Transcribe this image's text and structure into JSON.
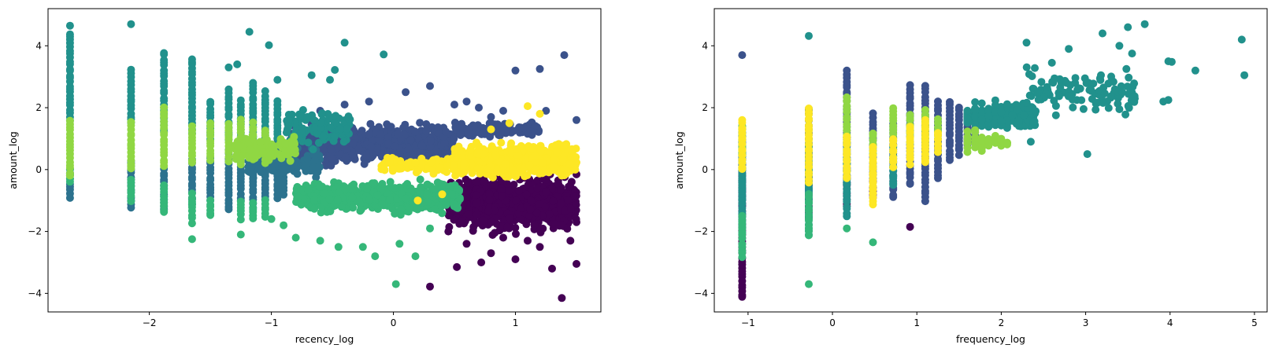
{
  "chart_data": [
    {
      "type": "scatter",
      "title": "",
      "xlabel": "recency_log",
      "ylabel": "amount_log",
      "xlim": [
        -2.83,
        1.7
      ],
      "ylim": [
        -4.6,
        5.2
      ],
      "xticks": [
        -2,
        -1,
        0,
        1
      ],
      "xtick_labels": [
        "−2",
        "−1",
        "0",
        "1"
      ],
      "yticks": [
        -4,
        -2,
        0,
        2,
        4
      ],
      "ytick_labels": [
        "−4",
        "−2",
        "0",
        "2",
        "4"
      ],
      "grid": false,
      "legend": "none",
      "marker_size_pt": 6,
      "colormap": "viridis",
      "series": [
        {
          "cluster": 0,
          "color": "#440154",
          "regions": [
            {
              "x": [
                0.45,
                1.5
              ],
              "y": [
                -2.2,
                0.0
              ],
              "n": 900
            }
          ],
          "points": [
            [
              0.45,
              -2.0
            ],
            [
              0.6,
              -2.4
            ],
            [
              0.8,
              -2.7
            ],
            [
              1.0,
              -2.9
            ],
            [
              1.2,
              -2.5
            ],
            [
              1.3,
              -3.2
            ],
            [
              1.38,
              -4.15
            ],
            [
              1.5,
              -3.05
            ],
            [
              0.72,
              -3.0
            ],
            [
              0.52,
              -3.15
            ],
            [
              0.3,
              -3.78
            ],
            [
              1.1,
              -2.3
            ],
            [
              1.45,
              -2.3
            ],
            [
              0.9,
              -2.2
            ]
          ]
        },
        {
          "cluster": 1,
          "color": "#3b528b",
          "regions": [
            {
              "x": [
                -0.85,
                0.5
              ],
              "y": [
                0.0,
                1.6
              ],
              "n": 800
            },
            {
              "x": [
                0.5,
                1.2
              ],
              "y": [
                1.0,
                1.6
              ],
              "n": 120
            }
          ],
          "points": [
            [
              -0.4,
              2.1
            ],
            [
              -0.2,
              2.2
            ],
            [
              0.1,
              2.5
            ],
            [
              0.3,
              2.7
            ],
            [
              0.5,
              2.1
            ],
            [
              0.6,
              2.2
            ],
            [
              0.7,
              2.0
            ],
            [
              0.9,
              1.9
            ],
            [
              1.0,
              3.2
            ],
            [
              1.2,
              3.25
            ],
            [
              1.4,
              3.7
            ],
            [
              1.5,
              1.6
            ],
            [
              1.25,
              1.9
            ],
            [
              -0.6,
              1.9
            ],
            [
              -0.8,
              0.5
            ],
            [
              0.8,
              1.7
            ]
          ]
        },
        {
          "cluster": 2,
          "color": "#2c728e",
          "regions": [
            {
              "x": [
                -1.2,
                -0.6
              ],
              "y": [
                -0.4,
                0.8
              ],
              "n": 150
            }
          ],
          "points": [],
          "stripes": [
            [
              -2.65,
              -0.9,
              0.0
            ],
            [
              -2.15,
              -1.2,
              0.3
            ],
            [
              -1.88,
              -1.3,
              0.0
            ],
            [
              -1.65,
              -1.1,
              0.3
            ],
            [
              -1.5,
              -1.0,
              0.4
            ],
            [
              -1.35,
              -1.3,
              0.6
            ],
            [
              -1.25,
              -1.0,
              0.8
            ],
            [
              -1.15,
              -1.2,
              1.0
            ],
            [
              -1.05,
              -1.0,
              1.0
            ],
            [
              -0.95,
              -0.9,
              1.0
            ],
            [
              -0.9,
              -0.8,
              0.8
            ]
          ]
        },
        {
          "cluster": 3,
          "color": "#21918c",
          "regions": [
            {
              "x": [
                -0.9,
                -0.35
              ],
              "y": [
                0.5,
                2.2
              ],
              "n": 110
            }
          ],
          "points": [
            [
              -2.65,
              4.65
            ],
            [
              -2.15,
              4.7
            ],
            [
              -1.18,
              4.45
            ],
            [
              -1.02,
              4.02
            ],
            [
              -1.35,
              3.3
            ],
            [
              -1.28,
              3.4
            ],
            [
              -0.4,
              4.1
            ],
            [
              -0.08,
              3.72
            ],
            [
              -0.48,
              3.22
            ],
            [
              -0.67,
              3.05
            ],
            [
              -0.52,
              2.9
            ],
            [
              -0.95,
              2.9
            ]
          ],
          "stripes": [
            [
              -2.65,
              1.6,
              4.4
            ],
            [
              -2.15,
              1.5,
              3.2
            ],
            [
              -1.88,
              1.2,
              3.8
            ],
            [
              -1.65,
              1.2,
              3.6
            ],
            [
              -1.5,
              1.0,
              2.2
            ],
            [
              -1.35,
              1.0,
              2.6
            ],
            [
              -1.25,
              1.0,
              2.2
            ],
            [
              -1.15,
              1.0,
              2.8
            ],
            [
              -1.05,
              1.0,
              2.5
            ],
            [
              -0.95,
              1.0,
              2.2
            ]
          ]
        },
        {
          "cluster": 4,
          "color": "#35b779",
          "regions": [
            {
              "x": [
                -0.8,
                0.55
              ],
              "y": [
                -1.5,
                -0.3
              ],
              "n": 650
            }
          ],
          "points": [
            [
              -1.65,
              -2.25
            ],
            [
              -1.25,
              -2.1
            ],
            [
              -0.8,
              -2.2
            ],
            [
              -0.6,
              -2.3
            ],
            [
              -0.45,
              -2.5
            ],
            [
              -0.25,
              -2.5
            ],
            [
              -0.15,
              -2.8
            ],
            [
              0.05,
              -2.4
            ],
            [
              0.18,
              -2.8
            ],
            [
              0.02,
              -3.7
            ],
            [
              -0.9,
              -1.8
            ],
            [
              -1.0,
              -1.6
            ],
            [
              0.3,
              -1.9
            ]
          ],
          "stripes": [
            [
              -2.65,
              -0.4,
              0.0
            ],
            [
              -2.15,
              -1.0,
              -0.3
            ],
            [
              -1.88,
              -1.4,
              -0.5
            ],
            [
              -1.65,
              -1.7,
              -0.8
            ],
            [
              -1.5,
              -1.5,
              -1.0
            ],
            [
              -1.25,
              -1.6,
              -1.0
            ],
            [
              -1.15,
              -1.6,
              -1.1
            ],
            [
              -1.05,
              -1.5,
              -1.0
            ]
          ]
        },
        {
          "cluster": 5,
          "color": "#90d743",
          "regions": [
            {
              "x": [
                -1.3,
                -0.8
              ],
              "y": [
                0.2,
                1.2
              ],
              "n": 120
            }
          ],
          "points": [],
          "stripes": [
            [
              -2.65,
              -0.2,
              1.6
            ],
            [
              -2.15,
              0.0,
              1.5
            ],
            [
              -1.88,
              0.1,
              2.0
            ],
            [
              -1.65,
              0.2,
              1.4
            ],
            [
              -1.5,
              0.3,
              1.5
            ],
            [
              -1.35,
              0.3,
              1.5
            ],
            [
              -1.25,
              0.2,
              1.6
            ],
            [
              -1.15,
              0.3,
              1.5
            ],
            [
              -1.05,
              0.2,
              1.3
            ]
          ]
        },
        {
          "cluster": 6,
          "color": "#fde725",
          "regions": [
            {
              "x": [
                0.5,
                1.5
              ],
              "y": [
                -0.4,
                1.0
              ],
              "n": 550
            },
            {
              "x": [
                -0.1,
                0.6
              ],
              "y": [
                -0.2,
                0.5
              ],
              "n": 120
            }
          ],
          "points": [
            [
              1.1,
              2.05
            ],
            [
              1.2,
              1.8
            ],
            [
              0.95,
              1.5
            ],
            [
              0.8,
              1.3
            ],
            [
              0.2,
              -1.0
            ],
            [
              0.4,
              -0.8
            ]
          ]
        }
      ]
    },
    {
      "type": "scatter",
      "title": "",
      "xlabel": "frequency_log",
      "ylabel": "amount_log",
      "xlim": [
        -1.4,
        5.15
      ],
      "ylim": [
        -4.6,
        5.2
      ],
      "xticks": [
        -1,
        0,
        1,
        2,
        3,
        4,
        5
      ],
      "xtick_labels": [
        "−1",
        "0",
        "1",
        "2",
        "3",
        "4",
        "5"
      ],
      "yticks": [
        -4,
        -2,
        0,
        2,
        4
      ],
      "ytick_labels": [
        "−4",
        "−2",
        "0",
        "2",
        "4"
      ],
      "grid": false,
      "legend": "none",
      "marker_size_pt": 6,
      "colormap": "viridis",
      "x_levels": [
        -1.07,
        -0.28,
        0.17,
        0.48,
        0.72,
        0.92,
        1.1,
        1.25,
        1.39,
        1.5,
        1.6,
        1.69,
        1.77,
        1.85,
        1.93,
        2.0,
        2.07,
        2.13
      ],
      "series": [
        {
          "cluster": 0,
          "color": "#440154",
          "stripes": [
            [
              -1.07,
              -4.15,
              -0.2
            ],
            [
              -0.28,
              -1.6,
              -0.2
            ],
            [
              0.17,
              -1.2,
              -0.3
            ],
            [
              0.48,
              -0.9,
              -0.3
            ]
          ],
          "points": [
            [
              0.92,
              -1.85
            ]
          ]
        },
        {
          "cluster": 1,
          "color": "#3b528b",
          "stripes": [
            [
              -1.07,
              -1.2,
              1.2
            ],
            [
              -0.28,
              -0.8,
              2.0
            ],
            [
              0.17,
              -0.5,
              3.2
            ],
            [
              0.48,
              -0.3,
              1.8
            ],
            [
              0.72,
              -0.9,
              1.5
            ],
            [
              0.92,
              -0.5,
              2.7
            ],
            [
              1.1,
              -1.0,
              2.7
            ],
            [
              1.25,
              -0.3,
              2.2
            ],
            [
              1.39,
              0.3,
              2.2
            ],
            [
              1.5,
              0.5,
              2.0
            ],
            [
              1.6,
              0.8,
              1.8
            ],
            [
              1.69,
              0.9,
              1.9
            ]
          ],
          "points": [
            [
              -1.07,
              3.7
            ]
          ]
        },
        {
          "cluster": 2,
          "color": "#2c728e",
          "stripes": [
            [
              -1.07,
              -1.0,
              0.5
            ],
            [
              -0.28,
              -0.6,
              0.5
            ],
            [
              0.17,
              -0.2,
              0.3
            ]
          ],
          "points": []
        },
        {
          "cluster": 3,
          "color": "#21918c",
          "regions": [
            {
              "x": [
                1.6,
                2.4
              ],
              "y": [
                1.2,
                2.3
              ],
              "n": 320
            },
            {
              "x": [
                2.3,
                3.6
              ],
              "y": [
                1.5,
                3.5
              ],
              "n": 110
            }
          ],
          "points": [
            [
              -0.28,
              4.32
            ],
            [
              2.3,
              4.1
            ],
            [
              3.2,
              4.4
            ],
            [
              3.4,
              4.0
            ],
            [
              3.5,
              4.6
            ],
            [
              3.7,
              4.7
            ],
            [
              3.55,
              3.75
            ],
            [
              3.98,
              3.5
            ],
            [
              4.02,
              3.48
            ],
            [
              4.3,
              3.2
            ],
            [
              4.85,
              4.2
            ],
            [
              4.88,
              3.05
            ],
            [
              3.92,
              2.2
            ],
            [
              3.98,
              2.25
            ],
            [
              3.4,
              1.95
            ],
            [
              3.02,
              0.5
            ],
            [
              2.8,
              3.9
            ],
            [
              2.6,
              3.45
            ],
            [
              2.35,
              0.9
            ]
          ],
          "stripes": [
            [
              -1.07,
              -2.0,
              1.4
            ],
            [
              -0.28,
              -2.1,
              0.8
            ],
            [
              0.17,
              -1.5,
              1.0
            ],
            [
              0.72,
              -0.5,
              0.8
            ]
          ]
        },
        {
          "cluster": 4,
          "color": "#35b779",
          "stripes": [
            [
              -1.07,
              -2.8,
              -1.5
            ],
            [
              -0.28,
              -2.1,
              -0.8
            ]
          ],
          "points": [
            [
              -0.28,
              -3.7
            ],
            [
              0.48,
              -2.35
            ],
            [
              0.17,
              -1.9
            ]
          ]
        },
        {
          "cluster": 5,
          "color": "#90d743",
          "stripes": [
            [
              -1.07,
              0.5,
              1.4
            ],
            [
              0.17,
              0.8,
              2.3
            ],
            [
              0.48,
              0.5,
              1.2
            ],
            [
              0.72,
              1.0,
              2.0
            ],
            [
              0.92,
              0.9,
              1.8
            ],
            [
              1.1,
              0.8,
              1.9
            ],
            [
              1.25,
              1.0,
              1.6
            ],
            [
              1.6,
              0.6,
              1.2
            ],
            [
              1.69,
              0.7,
              1.3
            ],
            [
              1.77,
              0.6,
              1.0
            ],
            [
              1.85,
              0.8,
              1.0
            ],
            [
              1.93,
              0.9,
              1.1
            ],
            [
              2.0,
              0.8,
              1.0
            ],
            [
              2.07,
              0.8,
              0.9
            ]
          ],
          "points": []
        },
        {
          "cluster": 6,
          "color": "#fde725",
          "stripes": [
            [
              -1.07,
              0.0,
              1.6
            ],
            [
              -0.28,
              -0.4,
              2.0
            ],
            [
              0.17,
              -0.3,
              1.1
            ],
            [
              0.48,
              -1.1,
              0.7
            ],
            [
              0.72,
              0.1,
              1.0
            ],
            [
              0.92,
              0.2,
              1.4
            ],
            [
              1.1,
              0.2,
              1.6
            ],
            [
              1.25,
              0.6,
              1.2
            ]
          ],
          "points": []
        }
      ]
    }
  ]
}
